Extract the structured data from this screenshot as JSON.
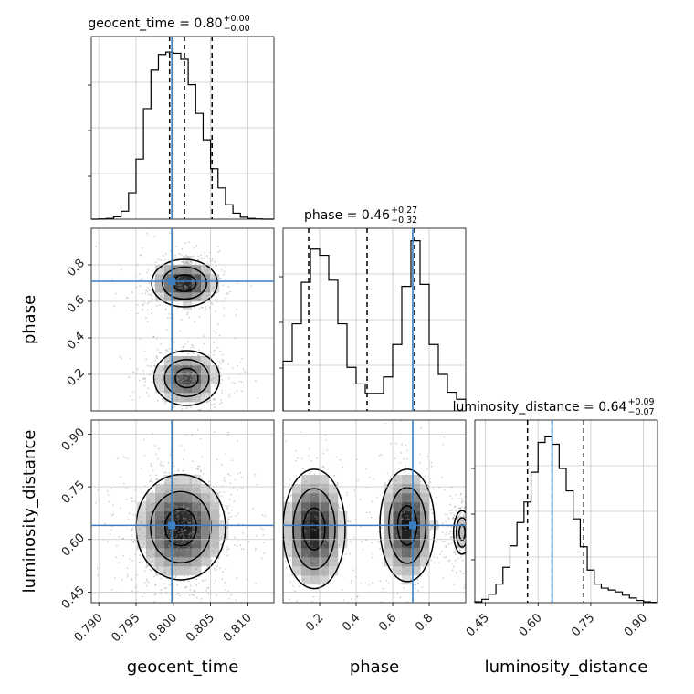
{
  "chart_data": {
    "type": "corner",
    "colors": {
      "truth": "#3b7dbf",
      "hist": "#000000",
      "grid": "#c8c8c8",
      "density": "#000000"
    },
    "grid": true,
    "parameters": [
      {
        "name": "geocent_time",
        "label": "geocent_time",
        "range": [
          0.789,
          0.8135
        ],
        "ticks": [
          "0.790",
          "0.795",
          "0.800",
          "0.805",
          "0.810"
        ],
        "truth": 0.7998
      },
      {
        "name": "phase",
        "label": "phase",
        "range": [
          0.0,
          1.0
        ],
        "ticks": [
          "0.2",
          "0.4",
          "0.6",
          "0.8"
        ],
        "truth": 0.71
      },
      {
        "name": "luminosity_distance",
        "label": "luminosity_distance",
        "range": [
          0.42,
          0.94
        ],
        "ticks": [
          "0.45",
          "0.60",
          "0.75",
          "0.90"
        ],
        "truth": 0.64
      }
    ],
    "marginals": [
      {
        "parameter": "geocent_time",
        "title": {
          "text": "geocent_time = 0.80",
          "plus": "+0.00",
          "minus": "−0.00"
        },
        "quantiles": [
          0.7995,
          0.8015,
          0.8052
        ],
        "bins": [
          0.789,
          0.79,
          0.791,
          0.792,
          0.793,
          0.794,
          0.795,
          0.796,
          0.797,
          0.798,
          0.799,
          0.8,
          0.801,
          0.802,
          0.803,
          0.804,
          0.805,
          0.806,
          0.807,
          0.808,
          0.809,
          0.81,
          0.811,
          0.812,
          0.8135
        ],
        "counts": [
          0,
          1,
          3,
          10,
          33,
          110,
          250,
          460,
          620,
          685,
          695,
          690,
          665,
          560,
          440,
          330,
          210,
          130,
          60,
          25,
          8,
          3,
          1,
          0
        ],
        "ymax": 760
      },
      {
        "parameter": "phase",
        "title": {
          "text": "phase = 0.46",
          "plus": "+0.27",
          "minus": "−0.32"
        },
        "quantiles": [
          0.14,
          0.46,
          0.72
        ],
        "bins": [
          0,
          0.05,
          0.1,
          0.15,
          0.2,
          0.25,
          0.3,
          0.35,
          0.4,
          0.45,
          0.5,
          0.55,
          0.6,
          0.65,
          0.7,
          0.75,
          0.8,
          0.85,
          0.9,
          0.95,
          1.0
        ],
        "counts": [
          120,
          210,
          310,
          390,
          375,
          315,
          210,
          105,
          65,
          42,
          42,
          82,
          160,
          300,
          410,
          305,
          160,
          88,
          45,
          28
        ],
        "ymax": 440
      },
      {
        "parameter": "luminosity_distance",
        "title": {
          "text": "luminosity_distance = 0.64",
          "plus": "+0.09",
          "minus": "−0.07"
        },
        "quantiles": [
          0.57,
          0.64,
          0.73
        ],
        "bins": [
          0.42,
          0.44,
          0.46,
          0.48,
          0.5,
          0.52,
          0.54,
          0.56,
          0.58,
          0.6,
          0.62,
          0.64,
          0.66,
          0.68,
          0.7,
          0.72,
          0.74,
          0.76,
          0.78,
          0.8,
          0.82,
          0.84,
          0.86,
          0.88,
          0.9,
          0.92,
          0.94
        ],
        "counts": [
          5,
          18,
          45,
          100,
          190,
          305,
          430,
          540,
          700,
          860,
          890,
          850,
          720,
          600,
          450,
          300,
          175,
          100,
          78,
          68,
          58,
          40,
          25,
          12,
          5,
          2
        ],
        "ymax": 980
      }
    ],
    "joint": [
      {
        "x": "geocent_time",
        "y": "phase",
        "modes": [
          {
            "cx": 0.8015,
            "cy": 0.7,
            "sx": 0.0022,
            "sy": 0.065,
            "weight": 1.0
          },
          {
            "cx": 0.8018,
            "cy": 0.18,
            "sx": 0.0022,
            "sy": 0.075,
            "weight": 0.8
          }
        ]
      },
      {
        "x": "geocent_time",
        "y": "luminosity_distance",
        "modes": [
          {
            "cx": 0.801,
            "cy": 0.635,
            "sx": 0.003,
            "sy": 0.075,
            "weight": 1.0
          }
        ]
      },
      {
        "x": "phase",
        "y": "luminosity_distance",
        "modes": [
          {
            "cx": 0.17,
            "cy": 0.63,
            "sx": 0.085,
            "sy": 0.085,
            "weight": 1.0
          },
          {
            "cx": 0.68,
            "cy": 0.64,
            "sx": 0.075,
            "sy": 0.08,
            "weight": 1.0
          },
          {
            "cx": 0.98,
            "cy": 0.62,
            "sx": 0.03,
            "sy": 0.04,
            "weight": 0.25
          }
        ]
      }
    ]
  }
}
